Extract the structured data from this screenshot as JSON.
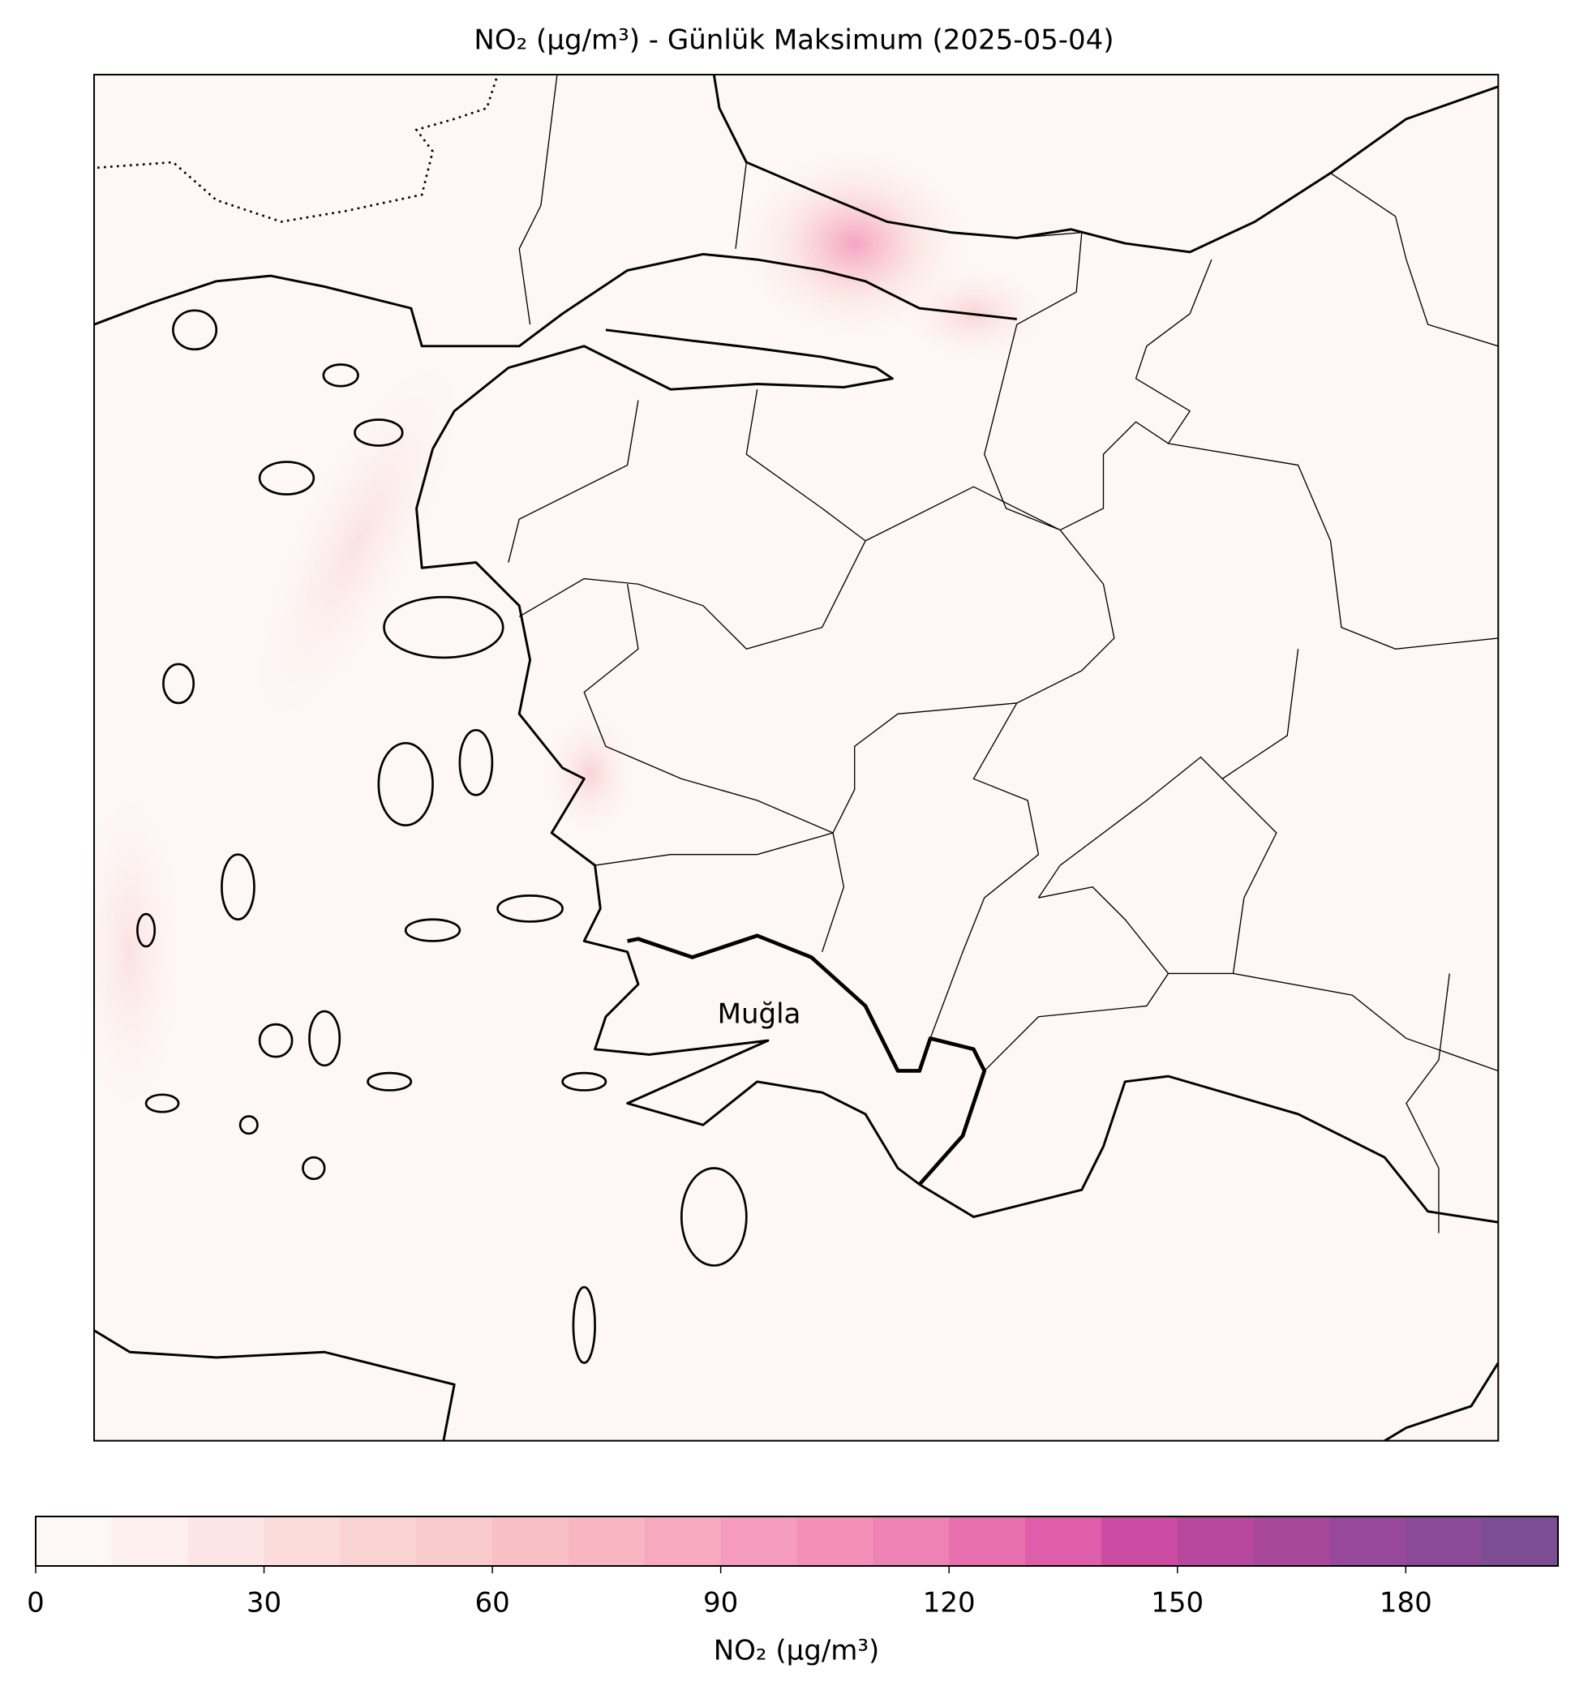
{
  "chart_data": {
    "type": "map",
    "title": "NO₂ (µg/m³) - Günlük Maksimum (2025-05-04)",
    "annotations": [
      "Muğla"
    ],
    "colorbar": {
      "label": "NO₂ (µg/m³)",
      "lim": [
        0,
        200
      ],
      "levels": [
        0,
        10,
        20,
        30,
        40,
        50,
        60,
        70,
        80,
        90,
        100,
        110,
        120,
        130,
        140,
        150,
        160,
        170,
        180,
        190,
        200
      ],
      "colors": [
        "#fdf7f5",
        "#fcefed",
        "#fce6e5",
        "#fbdcdb",
        "#f9d3d2",
        "#f9cacc",
        "#f8bfc4",
        "#f8b5c2",
        "#f7a9c0",
        "#f59bbd",
        "#f38fb9",
        "#ef82b5",
        "#e870af",
        "#de5ea9",
        "#cc4ba2",
        "#b8489e",
        "#a8489b",
        "#98489a",
        "#8a4a97",
        "#7d4d94"
      ],
      "ticks": [
        0,
        30,
        60,
        90,
        120,
        150,
        180
      ]
    }
  }
}
